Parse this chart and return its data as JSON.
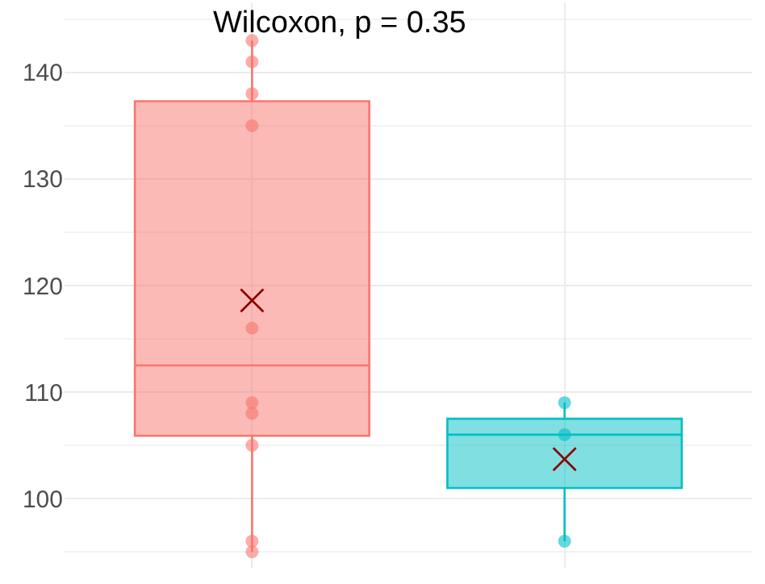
{
  "chart_data": {
    "type": "box",
    "categories": [
      null,
      null
    ],
    "boxes": [
      {
        "low": 95,
        "q1": 105.9,
        "median": 112.5,
        "q3": 137.3,
        "high": 143,
        "mean": 118.6,
        "outliers": [
          143,
          141,
          138,
          135,
          116,
          109,
          108,
          105,
          96,
          95
        ]
      },
      {
        "low": 96,
        "q1": 101,
        "median": 106,
        "q3": 107.5,
        "high": 109,
        "mean": 103.7,
        "outliers": [
          109,
          106,
          96
        ]
      }
    ],
    "colors": [
      "#f8766d",
      "#00bfc4"
    ],
    "ylim": [
      93.5,
      146.5
    ],
    "yticks": [
      100,
      110,
      120,
      130,
      140
    ],
    "grid": true,
    "tick_labels": "y",
    "annotations": [
      "Wilcoxon, p = 0.35"
    ]
  }
}
